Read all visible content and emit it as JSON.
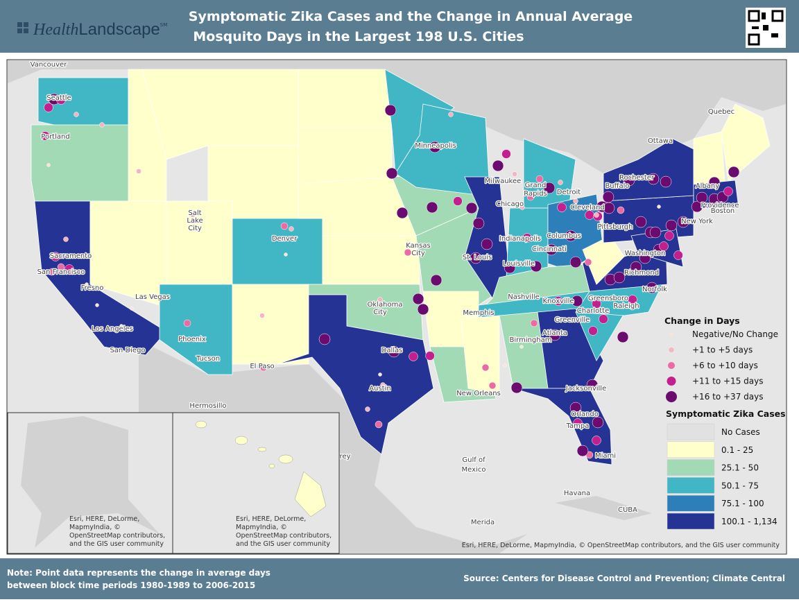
{
  "header": {
    "logo_health": "Health",
    "logo_landscape": "Landscape",
    "logo_mark": "SM",
    "title_lines": [
      "Symptomatic Zika Cases and the Change in Annual Average",
      "Mosquito Days in the Largest 198 U.S. Cities"
    ]
  },
  "map": {
    "places": [
      "Vancouver",
      "Seattle",
      "Portland",
      "Sacramento",
      "San Francisco",
      "Fresno",
      "Los Angeles",
      "San Diego",
      "Las Vegas",
      "Salt",
      "Lake",
      "City",
      "Denver",
      "Phoenix",
      "Tucson",
      "El Paso",
      "Hermosillo",
      "Monterrey",
      "Oklahoma",
      "City",
      "Dallas",
      "Austin",
      "Kansas",
      "City",
      "St. Louis",
      "Memphis",
      "Minneapolis",
      "Milwaukee",
      "Chicago",
      "Grand",
      "Rapids",
      "Detroit",
      "Indianapolis",
      "Cincinnati",
      "Columbus",
      "Louisville",
      "Nashville",
      "Knoxville",
      "Birmingham",
      "New Orleans",
      "Atlanta",
      "Jacksonville",
      "Orlando",
      "Tampa",
      "Miami",
      "Greensboro",
      "Charlotte",
      "Raleigh",
      "Greenville",
      "Richmond",
      "Norfolk",
      "Washington",
      "Pittsburgh",
      "Cleveland",
      "Buffalo",
      "Rochester",
      "Albany",
      "New York",
      "Boston",
      "Providence",
      "Ottawa",
      "Quebec",
      "Gulf of",
      "Mexico",
      "Havana",
      "Merida",
      "CUBA"
    ],
    "inset_attribution": [
      "Esri, HERE, DeLorme,",
      "MapmyIndia, ©",
      "OpenStreetMap contributors,",
      "and the GIS user community"
    ],
    "attribution": "Esri, HERE, DeLorme, MapmyIndia, © OpenStreetMap contributors, and the GIS user community"
  },
  "legend": {
    "days_title": "Change in Days",
    "days_items": [
      {
        "label": "Negative/No Change",
        "color": "#fbe3da"
      },
      {
        "label": "+1 to +5 days",
        "color": "#f6b3c1"
      },
      {
        "label": "+6 to +10 days",
        "color": "#ec6aa3"
      },
      {
        "label": "+11 to +15 days",
        "color": "#c41f8f"
      },
      {
        "label": "+16 to +37 days",
        "color": "#6b0b6f"
      }
    ],
    "cases_title": "Symptomatic Zika Cases",
    "cases_items": [
      {
        "label": "No Cases",
        "color": "#e1e1e1"
      },
      {
        "label": "0.1 - 25",
        "color": "#ffffcc"
      },
      {
        "label": "25.1 - 50",
        "color": "#a1dab4"
      },
      {
        "label": "50.1 - 75",
        "color": "#41b6c4"
      },
      {
        "label": "75.1 - 100",
        "color": "#2c7fb8"
      },
      {
        "label": "100.1 - 1,134",
        "color": "#253494"
      }
    ]
  },
  "footer": {
    "note_lines": [
      "Note: Point data represents the change in average days",
      "between block time periods 1980-1989 to 2006-2015"
    ],
    "source": "Source: Centers for Disease Control and Prevention; Climate Central"
  }
}
